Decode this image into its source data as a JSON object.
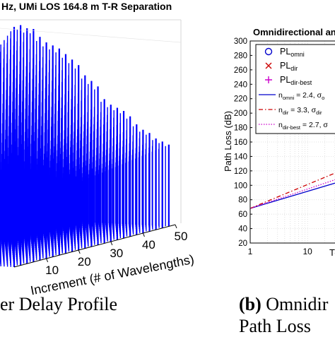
{
  "left_panel": {
    "title": "Hz, UMi LOS 164.8 m T-R Separation",
    "xlabel": "Increment (# of Wavelengths)",
    "x_ticks": [
      "10",
      "20",
      "30",
      "40",
      "50"
    ],
    "caption": "er Delay Profile",
    "bar_color": "#0000ff"
  },
  "right_panel": {
    "title": "Omnidirectional an",
    "ylabel": "Path Loss (dB)",
    "xlabel": "T-",
    "y_ticks": [
      "20",
      "40",
      "60",
      "80",
      "100",
      "120",
      "140",
      "160",
      "180",
      "200",
      "220",
      "240",
      "260",
      "280",
      "300"
    ],
    "x_ticks": [
      "1",
      "10"
    ],
    "caption_label": "(b)",
    "caption_text": "Omnidir",
    "caption_line2": "Path Loss"
  },
  "legend": {
    "items": [
      {
        "label": "PL",
        "sub": "omni",
        "marker": "circle",
        "color": "#0000cc"
      },
      {
        "label": "PL",
        "sub": "dir",
        "marker": "cross",
        "color": "#cc0000"
      },
      {
        "label": "PL",
        "sub": "dir-best",
        "marker": "plus",
        "color": "#cc00cc"
      },
      {
        "label": "n",
        "sub": "omni",
        "rest": " = 2.4, σ",
        "rest_sub": "o",
        "line": "solid",
        "color": "#0000cc"
      },
      {
        "label": "n",
        "sub": "dir",
        "rest": " = 3.3, σ",
        "rest_sub": "dir",
        "line": "dashdot",
        "color": "#cc0000"
      },
      {
        "label": "n",
        "sub": "dir-best",
        "rest": " = 2.7, σ",
        "rest_sub": "",
        "line": "dotted",
        "color": "#cc00cc"
      }
    ]
  },
  "chart_data": [
    {
      "type": "bar",
      "title": "Hz, UMi LOS 164.8 m T-R Separation",
      "xlabel": "Increment (# of Wavelengths)",
      "x_ticks": [
        10,
        20,
        30,
        40,
        50
      ],
      "increments": [
        0,
        2,
        4,
        6,
        8,
        10,
        12,
        14,
        16,
        18,
        20,
        22,
        24,
        26,
        28,
        30,
        32,
        34,
        36,
        38,
        40,
        42,
        44,
        46,
        48
      ],
      "profile_height": [
        1.0,
        1.0,
        0.98,
        0.97,
        0.93,
        0.9,
        0.88,
        0.86,
        0.83,
        0.8,
        0.77,
        0.72,
        0.69,
        0.66,
        0.6,
        0.57,
        0.55,
        0.53,
        0.5,
        0.46,
        0.43,
        0.41,
        0.38,
        0.36,
        0.34
      ],
      "color": "#0000ff"
    },
    {
      "type": "line",
      "title": "Omnidirectional an",
      "ylabel": "Path Loss (dB)",
      "xscale": "log",
      "xlim": [
        1,
        40
      ],
      "ylim": [
        20,
        300
      ],
      "yticks": [
        20,
        40,
        60,
        80,
        100,
        120,
        140,
        160,
        180,
        200,
        220,
        240,
        260,
        280,
        300
      ],
      "series": [
        {
          "name": "n_omni = 2.4",
          "style": "solid",
          "color": "#0000cc",
          "x": [
            1,
            40
          ],
          "y": [
            68,
            106
          ]
        },
        {
          "name": "n_dir = 3.3",
          "style": "dashdot",
          "color": "#cc0000",
          "x": [
            1,
            40
          ],
          "y": [
            68,
            121
          ]
        },
        {
          "name": "n_dir-best = 2.7",
          "style": "dotted",
          "color": "#cc00cc",
          "x": [
            1,
            40
          ],
          "y": [
            68,
            111
          ]
        }
      ]
    }
  ]
}
